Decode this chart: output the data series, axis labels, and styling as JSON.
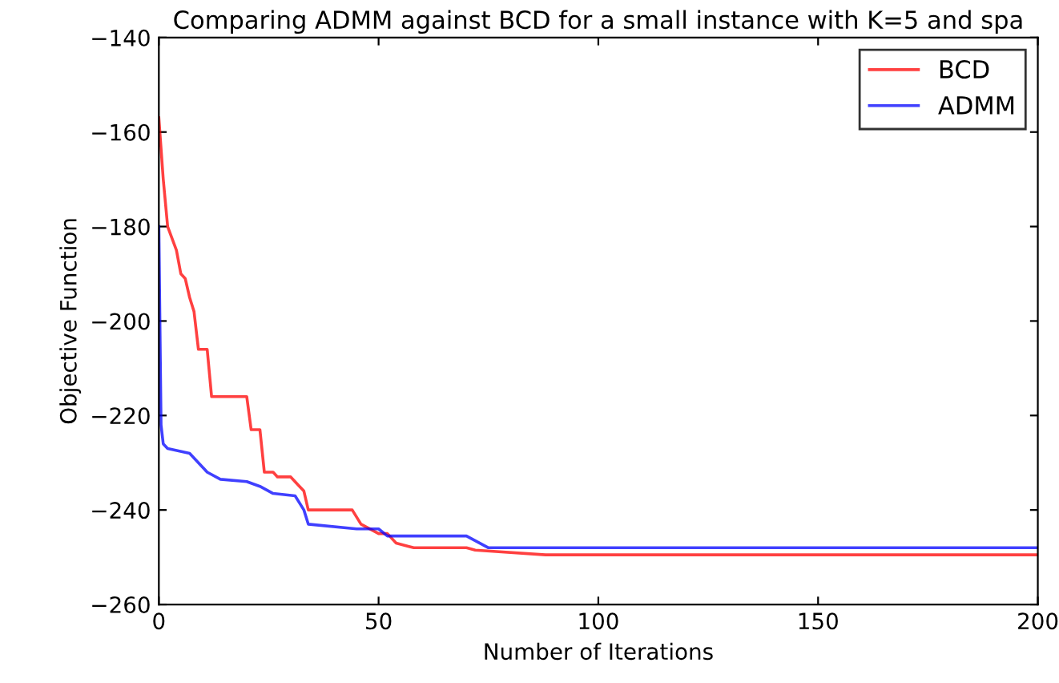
{
  "chart_data": {
    "type": "line",
    "title": "Comparing ADMM against BCD for a small instance with K=5 and spa",
    "xlabel": "Number of Iterations",
    "ylabel": "Objective Function",
    "xlim": [
      0,
      200
    ],
    "ylim": [
      -260,
      -140
    ],
    "xticks": [
      0,
      50,
      100,
      150,
      200
    ],
    "yticks": [
      -260,
      -240,
      -220,
      -200,
      -180,
      -160,
      -140
    ],
    "grid": false,
    "legend": "top right",
    "marker": "none",
    "line_style": "solid",
    "series": [
      {
        "name": "BCD",
        "color": "#ff0000",
        "x": [
          0,
          1,
          2,
          4,
          5,
          6,
          7,
          8,
          9,
          11,
          12,
          20,
          21,
          23,
          24,
          26,
          27,
          30,
          32,
          33,
          34,
          44,
          46,
          50,
          52,
          54,
          58,
          70,
          72,
          88,
          200
        ],
        "values": [
          -157,
          -170,
          -180,
          -185,
          -190,
          -191,
          -195,
          -198,
          -206,
          -206,
          -216,
          -216,
          -223,
          -223,
          -232,
          -232,
          -233,
          -233,
          -235,
          -236,
          -240,
          -240,
          -243,
          -245,
          -245,
          -247,
          -248,
          -248,
          -248.5,
          -249.5,
          -249.5
        ]
      },
      {
        "name": "ADMM",
        "color": "#0000ff",
        "x": [
          0,
          0.5,
          1,
          2,
          7,
          9,
          11,
          14,
          20,
          23,
          26,
          31,
          33,
          34,
          45,
          50,
          52,
          70,
          75,
          200
        ],
        "values": [
          -180,
          -222,
          -226,
          -227,
          -228,
          -230,
          -232,
          -233.5,
          -234,
          -235,
          -236.5,
          -237,
          -240,
          -243,
          -244,
          -244,
          -245.5,
          -245.5,
          -248,
          -248
        ]
      }
    ]
  }
}
